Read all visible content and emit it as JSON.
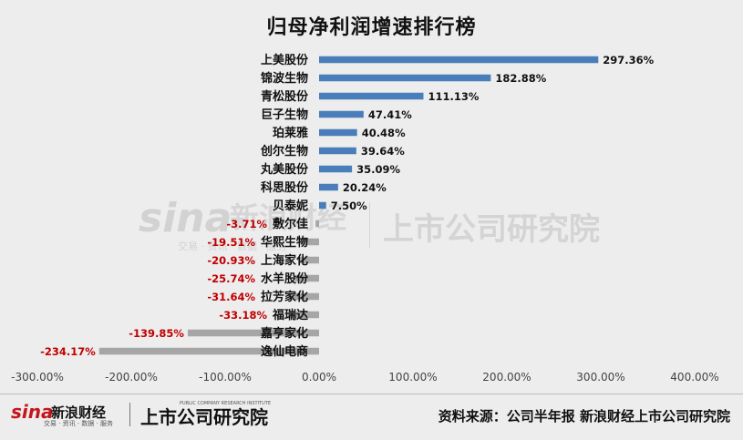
{
  "chart_data": {
    "type": "bar",
    "orientation": "horizontal",
    "title": "归母净利润增速排行榜",
    "categories": [
      "上美股份",
      "锦波生物",
      "青松股份",
      "巨子生物",
      "珀莱雅",
      "创尔生物",
      "丸美股份",
      "科思股份",
      "贝泰妮",
      "敷尔佳",
      "华熙生物",
      "上海家化",
      "水羊股份",
      "拉芳家化",
      "福瑞达",
      "嘉亨家化",
      "逸仙电商"
    ],
    "values": [
      297.36,
      182.88,
      111.13,
      47.41,
      40.48,
      39.64,
      35.09,
      20.24,
      7.5,
      -3.71,
      -19.51,
      -20.93,
      -25.74,
      -31.64,
      -33.18,
      -139.85,
      -234.17
    ],
    "value_labels": [
      "297.36%",
      "182.88%",
      "111.13%",
      "47.41%",
      "40.48%",
      "39.64%",
      "35.09%",
      "20.24%",
      "7.50%",
      "-3.71%",
      "-19.51%",
      "-20.93%",
      "-25.74%",
      "-31.64%",
      "-33.18%",
      "-139.85%",
      "-234.17%"
    ],
    "xlim": [
      -300,
      400
    ],
    "xticks": [
      -300,
      -200,
      -100,
      0,
      100,
      200,
      300,
      400
    ],
    "xtick_labels": [
      "-300.00%",
      "-200.00%",
      "-100.00%",
      "0.00%",
      "100.00%",
      "200.00%",
      "300.00%",
      "400.00%"
    ],
    "colors": {
      "positive": "#4a7ebb",
      "negative": "#a6a6a6",
      "negative_label": "#c00000",
      "positive_label": "#111111"
    },
    "grid": false,
    "legend": "none"
  },
  "watermark": {
    "sina": "sina",
    "xinlang": "新浪财经",
    "sub": "交易 · 资讯 · 数据 · 服务",
    "company": "上市公司研究院"
  },
  "footer": {
    "logo_sina": "sina",
    "logo_xinlang": "新浪财经",
    "logo_sub": "交易 · 资讯 · 数据 · 服务",
    "logo_company": "上市公司研究院",
    "logo_company_en": "PUBLIC COMPANY RESEARCH INSTITUTE",
    "source": "资料来源：公司半年报 新浪财经上市公司研究院"
  }
}
